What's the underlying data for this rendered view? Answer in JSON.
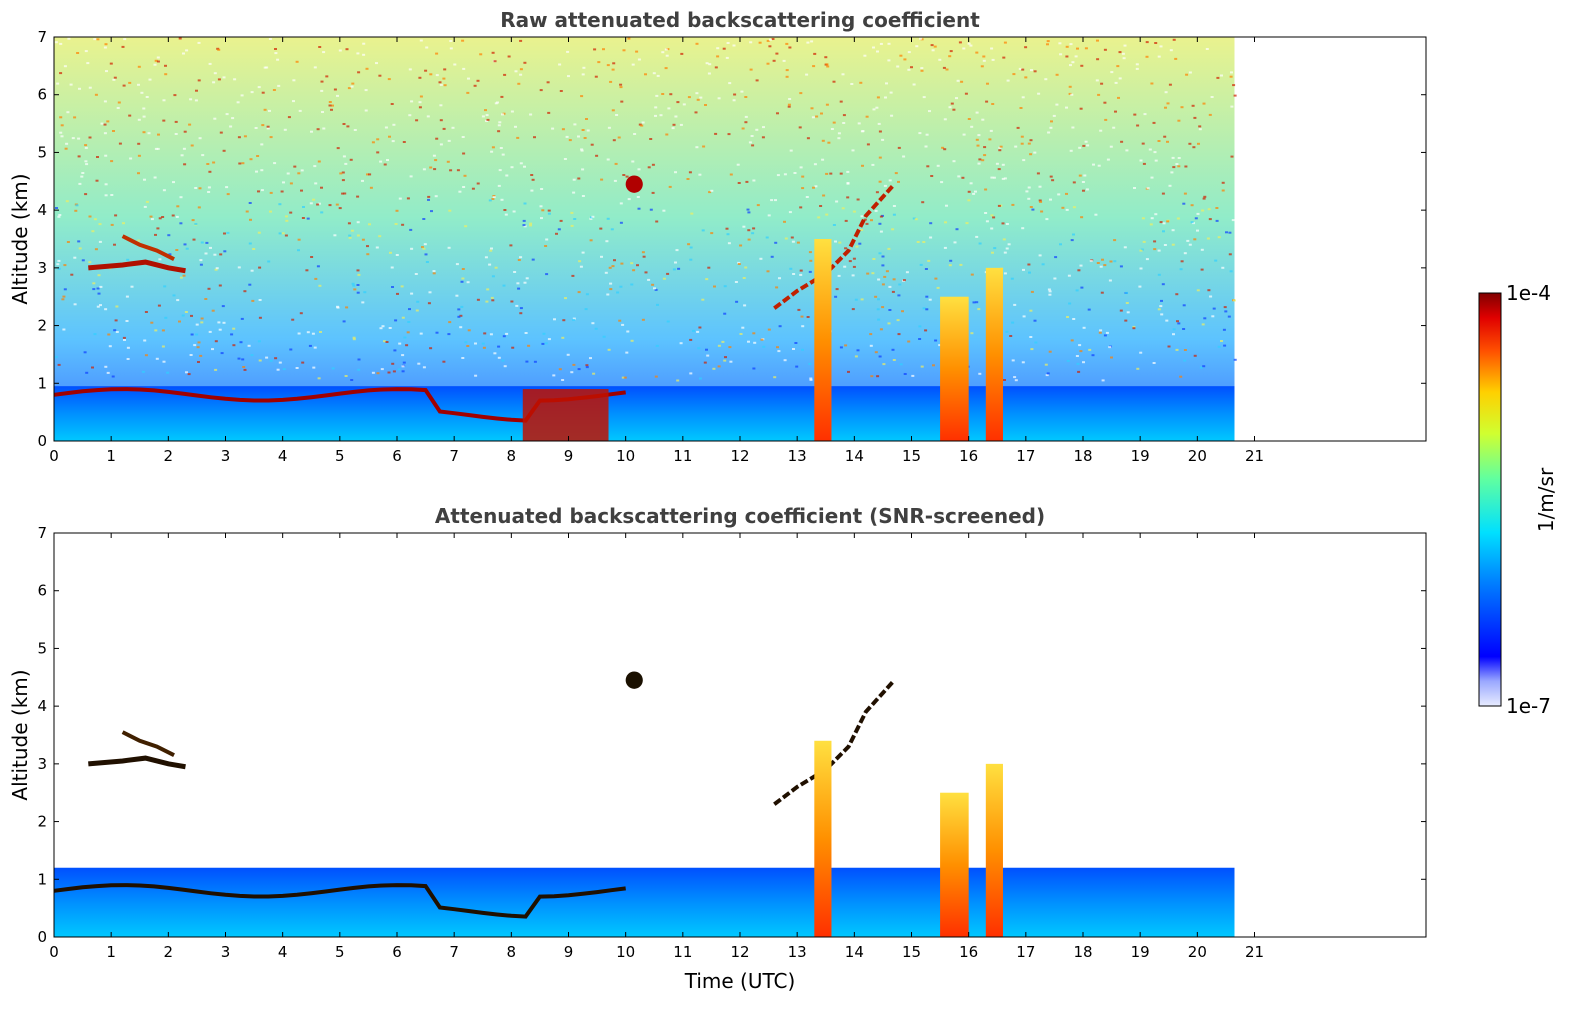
{
  "chart_data": [
    {
      "type": "heatmap",
      "title": "Raw attenuated backscattering coefficient",
      "xlabel": "",
      "ylabel": "Altitude (km)",
      "xlim": [
        0,
        24
      ],
      "ylim": [
        0,
        7
      ],
      "x_ticks": [
        "0",
        "1",
        "2",
        "3",
        "4",
        "5",
        "6",
        "7",
        "8",
        "9",
        "10",
        "11",
        "12",
        "13",
        "14",
        "15",
        "16",
        "17",
        "18",
        "19",
        "20",
        "21"
      ],
      "y_ticks": [
        "0",
        "1",
        "2",
        "3",
        "4",
        "5",
        "6",
        "7"
      ],
      "data_extent_hours": 20.65,
      "screened": false,
      "features": [
        {
          "kind": "boundary-layer",
          "x": [
            0,
            20.65
          ],
          "alt_top_km": 0.95
        },
        {
          "kind": "aerosol-layer",
          "x": [
            0.6,
            2.3
          ],
          "alt_km": [
            2.9,
            3.6
          ]
        },
        {
          "kind": "cloud",
          "x": [
            10.0,
            10.3
          ],
          "alt_km": [
            4.3,
            4.6
          ]
        },
        {
          "kind": "cloud-line",
          "x": [
            12.6,
            14.7
          ],
          "alt_km": [
            2.0,
            4.5
          ]
        },
        {
          "kind": "precip-column",
          "x": [
            13.3,
            13.6
          ],
          "alt_km": [
            0,
            3.5
          ]
        },
        {
          "kind": "precip-column",
          "x": [
            15.5,
            16.0
          ],
          "alt_km": [
            0,
            2.5
          ]
        },
        {
          "kind": "precip-column",
          "x": [
            16.3,
            16.6
          ],
          "alt_km": [
            0,
            3.0
          ]
        },
        {
          "kind": "dense-aerosol",
          "x": [
            8.2,
            9.7
          ],
          "alt_km": [
            0,
            0.9
          ]
        }
      ]
    },
    {
      "type": "heatmap",
      "title": "Attenuated backscattering coefficient (SNR-screened)",
      "xlabel": "Time (UTC)",
      "ylabel": "Altitude (km)",
      "xlim": [
        0,
        24
      ],
      "ylim": [
        0,
        7
      ],
      "x_ticks": [
        "0",
        "1",
        "2",
        "3",
        "4",
        "5",
        "6",
        "7",
        "8",
        "9",
        "10",
        "11",
        "12",
        "13",
        "14",
        "15",
        "16",
        "17",
        "18",
        "19",
        "20",
        "21"
      ],
      "y_ticks": [
        "0",
        "1",
        "2",
        "3",
        "4",
        "5",
        "6",
        "7"
      ],
      "data_extent_hours": 20.65,
      "screened": true,
      "features": [
        {
          "kind": "boundary-layer",
          "x": [
            0,
            20.65
          ],
          "alt_top_km": 1.2
        },
        {
          "kind": "aerosol-layer",
          "x": [
            0.6,
            2.3
          ],
          "alt_km": [
            2.9,
            3.6
          ]
        },
        {
          "kind": "cloud",
          "x": [
            10.0,
            10.3
          ],
          "alt_km": [
            4.3,
            4.6
          ]
        },
        {
          "kind": "cloud-line",
          "x": [
            12.6,
            14.7
          ],
          "alt_km": [
            2.0,
            4.5
          ]
        },
        {
          "kind": "precip-column",
          "x": [
            13.3,
            13.6
          ],
          "alt_km": [
            0,
            3.4
          ]
        },
        {
          "kind": "precip-column",
          "x": [
            15.5,
            16.0
          ],
          "alt_km": [
            0,
            2.5
          ]
        },
        {
          "kind": "precip-column",
          "x": [
            16.3,
            16.6
          ],
          "alt_km": [
            0,
            3.0
          ]
        }
      ]
    }
  ],
  "colorbar": {
    "max_label": "1e-4",
    "min_label": "1e-7",
    "unit_label": "1/m/sr",
    "scale": "log",
    "range": [
      1e-07,
      0.0001
    ],
    "colormap": "jet"
  }
}
